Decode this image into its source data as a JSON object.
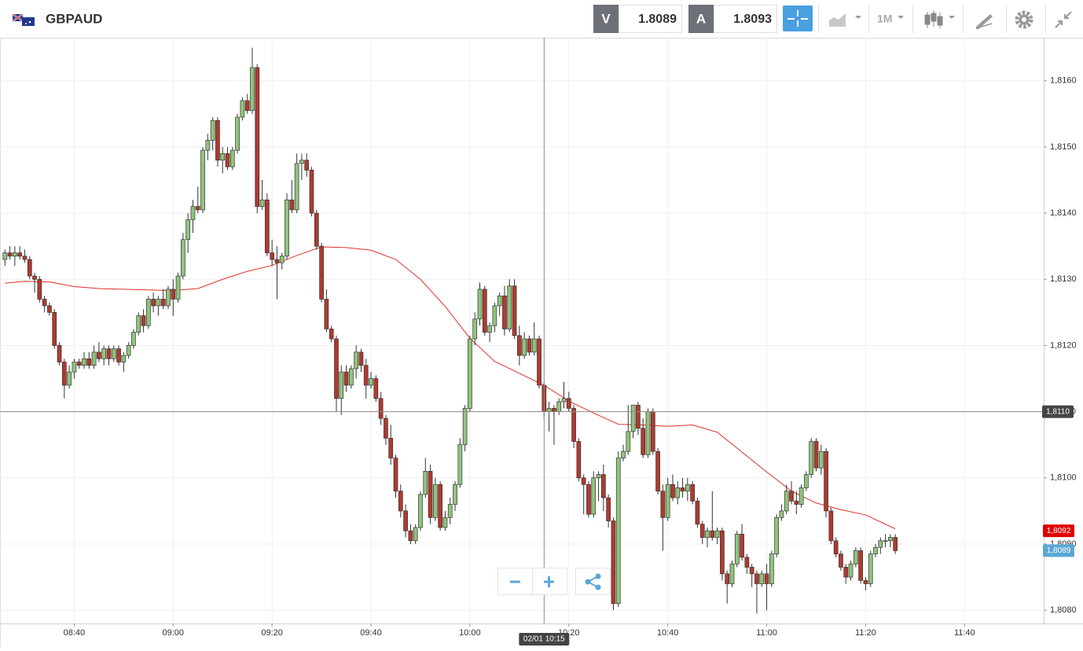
{
  "header": {
    "symbol": "GBPAUD",
    "sell_label": "V",
    "sell_price": "1.8089",
    "buy_label": "A",
    "buy_price": "1.8093",
    "timeframe": "1M"
  },
  "chart_data": {
    "type": "candlestick",
    "x": [
      "08:26",
      "08:27",
      "08:28",
      "08:29",
      "08:30",
      "08:31",
      "08:32",
      "08:33",
      "08:34",
      "08:35",
      "08:36",
      "08:37",
      "08:38",
      "08:39",
      "08:40",
      "08:41",
      "08:42",
      "08:43",
      "08:44",
      "08:45",
      "08:46",
      "08:47",
      "08:48",
      "08:49",
      "08:50",
      "08:51",
      "08:52",
      "08:53",
      "08:54",
      "08:55",
      "08:56",
      "08:57",
      "08:58",
      "08:59",
      "09:00",
      "09:01",
      "09:02",
      "09:03",
      "09:04",
      "09:05",
      "09:06",
      "09:07",
      "09:08",
      "09:09",
      "09:10",
      "09:11",
      "09:12",
      "09:13",
      "09:14",
      "09:15",
      "09:16",
      "09:17",
      "09:18",
      "09:19",
      "09:20",
      "09:21",
      "09:22",
      "09:23",
      "09:24",
      "09:25",
      "09:26",
      "09:27",
      "09:28",
      "09:29",
      "09:30",
      "09:31",
      "09:32",
      "09:33",
      "09:34",
      "09:35",
      "09:36",
      "09:37",
      "09:38",
      "09:39",
      "09:40",
      "09:41",
      "09:42",
      "09:43",
      "09:44",
      "09:45",
      "09:46",
      "09:47",
      "09:48",
      "09:49",
      "09:50",
      "09:51",
      "09:52",
      "09:53",
      "09:54",
      "09:55",
      "09:56",
      "09:57",
      "09:58",
      "09:59",
      "10:00",
      "10:01",
      "10:02",
      "10:03",
      "10:04",
      "10:05",
      "10:06",
      "10:07",
      "10:08",
      "10:09",
      "10:10",
      "10:11",
      "10:12",
      "10:13",
      "10:14",
      "10:15",
      "10:16",
      "10:17",
      "10:18",
      "10:19",
      "10:20",
      "10:21",
      "10:22",
      "10:23",
      "10:24",
      "10:25",
      "10:26",
      "10:27",
      "10:28",
      "10:29",
      "10:30",
      "10:31",
      "10:32",
      "10:33",
      "10:34",
      "10:35",
      "10:36",
      "10:37",
      "10:38",
      "10:39",
      "10:40",
      "10:41",
      "10:42",
      "10:43",
      "10:44",
      "10:45",
      "10:46",
      "10:47",
      "10:48",
      "10:49",
      "10:50",
      "10:51",
      "10:52",
      "10:53",
      "10:54",
      "10:55",
      "10:56",
      "10:57",
      "10:58",
      "10:59",
      "11:00",
      "11:01",
      "11:02",
      "11:03",
      "11:04",
      "11:05",
      "11:06",
      "11:07",
      "11:08",
      "11:09",
      "11:10",
      "11:11",
      "11:12",
      "11:13",
      "11:14",
      "11:15",
      "11:16",
      "11:17",
      "11:18",
      "11:19",
      "11:20",
      "11:21",
      "11:22",
      "11:23",
      "11:24",
      "11:25",
      "11:26"
    ],
    "open": [
      1.8133,
      1.8134,
      1.81335,
      1.8134,
      1.81335,
      1.8133,
      1.81305,
      1.813,
      1.8127,
      1.8126,
      1.8125,
      1.812,
      1.81175,
      1.8114,
      1.8116,
      1.81175,
      1.8117,
      1.8118,
      1.8117,
      1.8119,
      1.8118,
      1.81195,
      1.8118,
      1.81195,
      1.81175,
      1.81185,
      1.812,
      1.8122,
      1.81245,
      1.8123,
      1.8127,
      1.8126,
      1.8127,
      1.8126,
      1.81285,
      1.8127,
      1.81305,
      1.8136,
      1.8139,
      1.8141,
      1.81405,
      1.81495,
      1.8151,
      1.8154,
      1.8148,
      1.8149,
      1.8147,
      1.81495,
      1.81545,
      1.8157,
      1.81555,
      1.8162,
      1.8141,
      1.8142,
      1.8134,
      1.8133,
      1.81325,
      1.81335,
      1.8142,
      1.81405,
      1.81475,
      1.8148,
      1.81465,
      1.814,
      1.8135,
      1.8127,
      1.81225,
      1.8121,
      1.8112,
      1.8116,
      1.8114,
      1.81165,
      1.8119,
      1.8117,
      1.8114,
      1.8115,
      1.8112,
      1.8109,
      1.8106,
      1.8103,
      1.8098,
      1.8095,
      1.8092,
      1.80905,
      1.80925,
      1.80975,
      1.8101,
      1.8094,
      1.8099,
      1.80925,
      1.8094,
      1.8096,
      1.8099,
      1.8105,
      1.81105,
      1.8121,
      1.8124,
      1.81285,
      1.8122,
      1.8123,
      1.8126,
      1.81275,
      1.81225,
      1.8129,
      1.81215,
      1.81185,
      1.8121,
      1.8119,
      1.8121,
      1.8114,
      1.811,
      1.81105,
      1.811,
      1.81115,
      1.8112,
      1.81105,
      1.81055,
      1.81,
      1.8099,
      1.80945,
      1.81,
      1.81005,
      1.8097,
      1.80935,
      1.8081,
      1.8103,
      1.8104,
      1.8107,
      1.8111,
      1.81075,
      1.81035,
      1.811,
      1.8104,
      1.8098,
      1.8094,
      1.8099,
      1.8097,
      1.80985,
      1.8098,
      1.8099,
      1.80965,
      1.8093,
      1.8091,
      1.8092,
      1.8091,
      1.8092,
      1.80855,
      1.8084,
      1.8087,
      1.80915,
      1.8088,
      1.80865,
      1.80855,
      1.8084,
      1.80855,
      1.8084,
      1.80885,
      1.8094,
      1.8095,
      1.8098,
      1.80965,
      1.8096,
      1.80985,
      1.81005,
      1.81055,
      1.81015,
      1.8104,
      1.8095,
      1.80905,
      1.80885,
      1.80865,
      1.8085,
      1.8087,
      1.8089,
      1.80845,
      1.8084,
      1.80885,
      1.80895,
      1.80905,
      1.80905,
      1.8091
    ],
    "high": [
      1.81345,
      1.8135,
      1.8135,
      1.8135,
      1.81345,
      1.81335,
      1.8131,
      1.81305,
      1.81275,
      1.81265,
      1.81255,
      1.81205,
      1.8118,
      1.8117,
      1.8118,
      1.8118,
      1.8119,
      1.8119,
      1.812,
      1.81205,
      1.812,
      1.812,
      1.812,
      1.812,
      1.8119,
      1.81205,
      1.81225,
      1.8125,
      1.81255,
      1.81275,
      1.8128,
      1.81275,
      1.81285,
      1.8129,
      1.813,
      1.8131,
      1.8137,
      1.814,
      1.8142,
      1.8144,
      1.815,
      1.8152,
      1.81545,
      1.81545,
      1.815,
      1.815,
      1.815,
      1.8155,
      1.81575,
      1.8158,
      1.8165,
      1.81625,
      1.8145,
      1.8143,
      1.8136,
      1.8135,
      1.8134,
      1.8143,
      1.8145,
      1.8149,
      1.8149,
      1.8149,
      1.8147,
      1.81405,
      1.81355,
      1.81285,
      1.8123,
      1.81215,
      1.8117,
      1.8117,
      1.8117,
      1.812,
      1.81195,
      1.8118,
      1.8116,
      1.81155,
      1.8113,
      1.81095,
      1.8108,
      1.81035,
      1.8099,
      1.8096,
      1.8093,
      1.8093,
      1.8098,
      1.8103,
      1.8102,
      1.81,
      1.80995,
      1.8095,
      1.8097,
      1.80995,
      1.8106,
      1.8111,
      1.81215,
      1.8125,
      1.81295,
      1.8129,
      1.81235,
      1.81265,
      1.8128,
      1.8129,
      1.813,
      1.813,
      1.8123,
      1.8122,
      1.81215,
      1.81235,
      1.81215,
      1.81145,
      1.81115,
      1.8111,
      1.8112,
      1.81145,
      1.8113,
      1.8111,
      1.8106,
      1.81005,
      1.80995,
      1.8101,
      1.8101,
      1.8102,
      1.80975,
      1.8094,
      1.8104,
      1.8105,
      1.8111,
      1.8111,
      1.81115,
      1.8109,
      1.81105,
      1.81105,
      1.81045,
      1.8099,
      1.81,
      1.81005,
      1.80995,
      1.81,
      1.81,
      1.80995,
      1.8097,
      1.80935,
      1.80925,
      1.8098,
      1.80925,
      1.80925,
      1.8086,
      1.80875,
      1.8092,
      1.8093,
      1.80885,
      1.8087,
      1.8086,
      1.8086,
      1.8087,
      1.8089,
      1.80945,
      1.8096,
      1.8099,
      1.80995,
      1.8098,
      1.8099,
      1.8101,
      1.8106,
      1.8106,
      1.8105,
      1.81045,
      1.80955,
      1.8091,
      1.8089,
      1.8087,
      1.80875,
      1.80895,
      1.80895,
      1.8085,
      1.8089,
      1.809,
      1.8091,
      1.80915,
      1.80915,
      1.80915
    ],
    "low": [
      1.8132,
      1.8133,
      1.8132,
      1.8133,
      1.81325,
      1.813,
      1.8128,
      1.81265,
      1.8125,
      1.81245,
      1.81195,
      1.8117,
      1.8112,
      1.81135,
      1.8115,
      1.81165,
      1.81165,
      1.81165,
      1.81165,
      1.81175,
      1.8117,
      1.8117,
      1.81175,
      1.8117,
      1.8116,
      1.8118,
      1.81195,
      1.81215,
      1.8122,
      1.81225,
      1.8125,
      1.81245,
      1.81255,
      1.81255,
      1.81245,
      1.81265,
      1.813,
      1.8134,
      1.8137,
      1.814,
      1.814,
      1.8148,
      1.81495,
      1.8147,
      1.8146,
      1.81465,
      1.81465,
      1.8149,
      1.8154,
      1.8155,
      1.8155,
      1.814,
      1.81405,
      1.81335,
      1.8132,
      1.8127,
      1.81315,
      1.8133,
      1.814,
      1.814,
      1.8145,
      1.81455,
      1.81395,
      1.81345,
      1.81265,
      1.8122,
      1.81205,
      1.811,
      1.81095,
      1.8113,
      1.81135,
      1.8115,
      1.8116,
      1.8112,
      1.81135,
      1.81115,
      1.8108,
      1.8105,
      1.8102,
      1.8097,
      1.8094,
      1.8091,
      1.809,
      1.809,
      1.8092,
      1.8097,
      1.8093,
      1.80935,
      1.8092,
      1.8092,
      1.8093,
      1.8095,
      1.80985,
      1.8104,
      1.811,
      1.812,
      1.8123,
      1.81215,
      1.81205,
      1.8122,
      1.81245,
      1.81215,
      1.8122,
      1.8121,
      1.8117,
      1.8118,
      1.81185,
      1.81185,
      1.81135,
      1.8109,
      1.8107,
      1.8105,
      1.81095,
      1.81105,
      1.811,
      1.81045,
      1.80995,
      1.80945,
      1.8094,
      1.8094,
      1.80965,
      1.8095,
      1.80925,
      1.808,
      1.80805,
      1.81025,
      1.81035,
      1.8106,
      1.81065,
      1.8103,
      1.8103,
      1.81035,
      1.80975,
      1.8089,
      1.80935,
      1.80965,
      1.8096,
      1.8097,
      1.80965,
      1.8096,
      1.80925,
      1.809,
      1.80895,
      1.80905,
      1.809,
      1.80845,
      1.8081,
      1.80835,
      1.80865,
      1.80875,
      1.80855,
      1.80835,
      1.80795,
      1.80835,
      1.808,
      1.80835,
      1.8088,
      1.80935,
      1.80945,
      1.8096,
      1.80945,
      1.80955,
      1.8098,
      1.81,
      1.8101,
      1.81005,
      1.8094,
      1.809,
      1.8088,
      1.8086,
      1.8084,
      1.80845,
      1.80865,
      1.8084,
      1.8083,
      1.80835,
      1.8088,
      1.80885,
      1.80895,
      1.80895,
      1.80885
    ],
    "close": [
      1.8134,
      1.81335,
      1.8134,
      1.81335,
      1.8133,
      1.81305,
      1.813,
      1.8127,
      1.8126,
      1.8125,
      1.812,
      1.81175,
      1.8114,
      1.8116,
      1.81175,
      1.8117,
      1.8118,
      1.8117,
      1.8119,
      1.8118,
      1.81195,
      1.8118,
      1.81195,
      1.81175,
      1.81185,
      1.812,
      1.8122,
      1.81245,
      1.8123,
      1.8127,
      1.8126,
      1.8127,
      1.8126,
      1.81285,
      1.8127,
      1.81305,
      1.8136,
      1.8139,
      1.8141,
      1.81405,
      1.81495,
      1.8151,
      1.8154,
      1.8148,
      1.8149,
      1.8147,
      1.81495,
      1.81545,
      1.8157,
      1.81555,
      1.8162,
      1.8141,
      1.8142,
      1.8134,
      1.8133,
      1.81325,
      1.81335,
      1.8142,
      1.81405,
      1.81475,
      1.8148,
      1.81465,
      1.814,
      1.8135,
      1.8127,
      1.81225,
      1.8121,
      1.8112,
      1.8116,
      1.8114,
      1.81165,
      1.8119,
      1.8117,
      1.8114,
      1.8115,
      1.8112,
      1.8109,
      1.8106,
      1.8103,
      1.8098,
      1.8095,
      1.8092,
      1.80905,
      1.80925,
      1.80975,
      1.8101,
      1.8094,
      1.8099,
      1.80925,
      1.8094,
      1.8096,
      1.8099,
      1.8105,
      1.81105,
      1.8121,
      1.8124,
      1.81285,
      1.8122,
      1.8123,
      1.8126,
      1.81275,
      1.81225,
      1.8129,
      1.81215,
      1.81185,
      1.8121,
      1.8119,
      1.8121,
      1.8114,
      1.811,
      1.81105,
      1.811,
      1.81115,
      1.8112,
      1.81105,
      1.81055,
      1.81,
      1.8099,
      1.80945,
      1.81,
      1.81005,
      1.8097,
      1.80935,
      1.8081,
      1.8103,
      1.8104,
      1.8107,
      1.8111,
      1.81075,
      1.81035,
      1.811,
      1.8104,
      1.8098,
      1.8094,
      1.8099,
      1.8097,
      1.80985,
      1.8098,
      1.8099,
      1.80965,
      1.8093,
      1.8091,
      1.8092,
      1.8091,
      1.8092,
      1.80855,
      1.8084,
      1.8087,
      1.80915,
      1.8088,
      1.80865,
      1.80855,
      1.8084,
      1.80855,
      1.8084,
      1.80885,
      1.8094,
      1.8095,
      1.8098,
      1.80965,
      1.8096,
      1.80985,
      1.81005,
      1.81055,
      1.81015,
      1.8104,
      1.8095,
      1.80905,
      1.80885,
      1.80865,
      1.8085,
      1.8087,
      1.8089,
      1.80845,
      1.8084,
      1.80885,
      1.80895,
      1.80905,
      1.80905,
      1.8091,
      1.8089
    ],
    "up_color": "#92c47c",
    "down_color": "#b03a2e",
    "moving_average": {
      "color": "#e0302a",
      "x": [
        "08:26",
        "08:30",
        "08:35",
        "08:40",
        "08:45",
        "08:50",
        "08:55",
        "09:00",
        "09:05",
        "09:10",
        "09:15",
        "09:20",
        "09:25",
        "09:30",
        "09:35",
        "09:40",
        "09:45",
        "09:50",
        "09:55",
        "10:00",
        "10:05",
        "10:10",
        "10:15",
        "10:20",
        "10:25",
        "10:30",
        "10:35",
        "10:40",
        "10:45",
        "10:50",
        "10:55",
        "11:00",
        "11:05",
        "11:10",
        "11:15",
        "11:20",
        "11:26"
      ],
      "values": [
        1.81294,
        1.81297,
        1.81296,
        1.81289,
        1.81286,
        1.81285,
        1.81284,
        1.81283,
        1.81286,
        1.813,
        1.81312,
        1.81321,
        1.81336,
        1.81349,
        1.81348,
        1.81344,
        1.8133,
        1.813,
        1.81259,
        1.81211,
        1.81176,
        1.81158,
        1.8114,
        1.81116,
        1.81098,
        1.81081,
        1.8108,
        1.81078,
        1.8108,
        1.81069,
        1.81039,
        1.81009,
        1.8098,
        1.80962,
        1.80952,
        1.80944,
        1.80923
      ]
    },
    "xlim": [
      "08:25",
      "11:56"
    ],
    "xticks": [
      "08:40",
      "09:00",
      "09:20",
      "09:40",
      "10:00",
      "10:20",
      "10:40",
      "11:00",
      "11:20",
      "11:40"
    ],
    "ylim": [
      1.8078,
      1.81665
    ],
    "yticks": [
      {
        "value": 1.808,
        "label": "1,8080"
      },
      {
        "value": 1.809,
        "label": "1,8090"
      },
      {
        "value": 1.81,
        "label": "1,8100"
      },
      {
        "value": 1.811,
        "label": "1,8110"
      },
      {
        "value": 1.812,
        "label": "1,8120"
      },
      {
        "value": 1.813,
        "label": "1,8130"
      },
      {
        "value": 1.814,
        "label": "1,8140"
      },
      {
        "value": 1.815,
        "label": "1,8150"
      },
      {
        "value": 1.816,
        "label": "1,8160"
      }
    ],
    "grid": true,
    "crosshair": {
      "x_label": "02/01 10:15",
      "price": {
        "value": 1.811,
        "label": "1,8110"
      }
    },
    "price_tags": [
      {
        "value": 1.8092,
        "label": "1,8092",
        "color": "#e00000"
      },
      {
        "value": 1.8089,
        "label": "1,8089",
        "color": "#5aa7d6"
      }
    ]
  }
}
